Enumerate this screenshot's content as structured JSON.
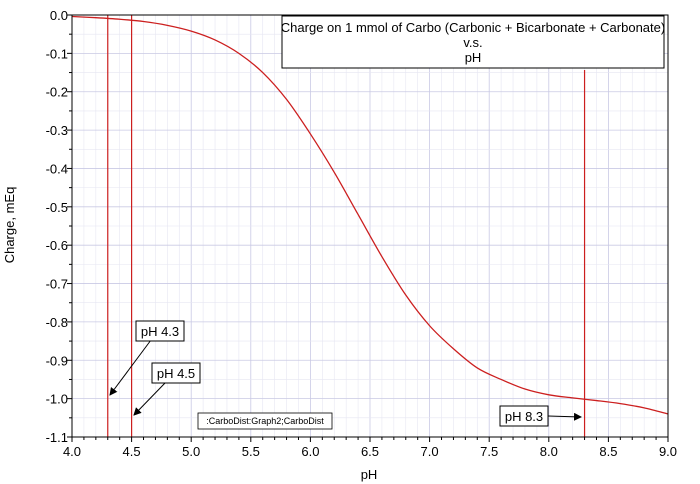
{
  "chart_data": {
    "type": "line",
    "title": [
      "Charge on 1 mmol of Carbo (Carbonic + Bicarbonate + Carbonate)",
      "v.s.",
      "pH"
    ],
    "xlabel": "pH",
    "ylabel": "Charge, mEq",
    "xlim": [
      4.0,
      9.0
    ],
    "ylim": [
      -1.1,
      0.0
    ],
    "x_ticks": [
      "4.0",
      "4.5",
      "5.0",
      "5.5",
      "6.0",
      "6.5",
      "7.0",
      "7.5",
      "8.0",
      "8.5",
      "9.0"
    ],
    "y_ticks": [
      "0.0",
      "-0.1",
      "-0.2",
      "-0.3",
      "-0.4",
      "-0.5",
      "-0.6",
      "-0.7",
      "-0.8",
      "-0.9",
      "-1.0",
      "-1.1"
    ],
    "grid": true,
    "series": [
      {
        "color": "#cc1f1f",
        "x": [
          4.0,
          4.2,
          4.4,
          4.6,
          4.8,
          5.0,
          5.2,
          5.4,
          5.6,
          5.8,
          6.0,
          6.2,
          6.4,
          6.6,
          6.8,
          7.0,
          7.2,
          7.4,
          7.6,
          7.8,
          8.0,
          8.2,
          8.4,
          8.6,
          8.8,
          9.0
        ],
        "y": [
          -0.004,
          -0.007,
          -0.011,
          -0.017,
          -0.027,
          -0.042,
          -0.065,
          -0.1,
          -0.15,
          -0.22,
          -0.31,
          -0.41,
          -0.52,
          -0.63,
          -0.73,
          -0.81,
          -0.87,
          -0.92,
          -0.95,
          -0.975,
          -0.99,
          -0.998,
          -1.005,
          -1.013,
          -1.024,
          -1.04
        ]
      }
    ],
    "vertical_lines": [
      {
        "x": 4.3,
        "color": "#cc1f1f"
      },
      {
        "x": 4.5,
        "color": "#cc1f1f"
      },
      {
        "x": 8.3,
        "color": "#cc1f1f"
      }
    ],
    "annotations": [
      {
        "text": "pH 4.3",
        "points_to": [
          4.3,
          -0.995
        ]
      },
      {
        "text": "pH 4.5",
        "points_to": [
          4.5,
          -1.045
        ]
      },
      {
        "text": "pH 8.3",
        "points_to": [
          8.3,
          -1.05
        ]
      }
    ],
    "footer": ":CarboDist:Graph2;CarboDist"
  }
}
